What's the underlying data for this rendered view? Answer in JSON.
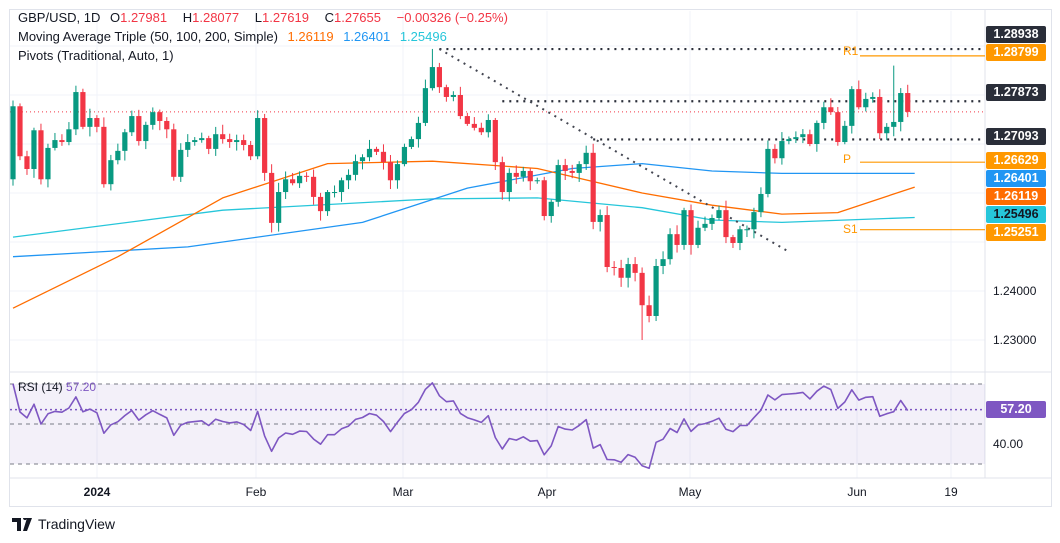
{
  "legend": {
    "symbol": "GBP/USD, 1D",
    "open_label": "O",
    "open": "1.27981",
    "high_label": "H",
    "high": "1.28077",
    "low_label": "L",
    "low": "1.27619",
    "close_label": "C",
    "close": "1.27655",
    "change": "−0.00326 (−0.25%)",
    "ma_title": "Moving Average Triple (50, 100, 200, Simple)",
    "ma50": "1.26119",
    "ma100": "1.26401",
    "ma200": "1.25496",
    "pivots_title": "Pivots (Traditional, Auto, 1)"
  },
  "price_tags": [
    {
      "value": "1.28938",
      "kind": "level"
    },
    {
      "value": "1.28799",
      "kind": "pivot"
    },
    {
      "value": "1.27873",
      "kind": "level"
    },
    {
      "value": "1.27093",
      "kind": "level"
    },
    {
      "value": "1.26629",
      "kind": "pivot"
    },
    {
      "value": "1.26401",
      "kind": "ma100"
    },
    {
      "value": "1.26119",
      "kind": "ma50"
    },
    {
      "value": "1.25496",
      "kind": "ma200"
    },
    {
      "value": "1.25251",
      "kind": "pivot"
    }
  ],
  "pivot_labels": {
    "r1": "R1",
    "p": "P",
    "s1": "S1"
  },
  "rsi": {
    "title": "RSI (14)",
    "value": "57.20",
    "axis_label": "40.00"
  },
  "brand": "TradingView",
  "colors": {
    "up": "#089981",
    "down": "#f23645",
    "ma50": "#ff6d00",
    "ma100": "#2196f3",
    "ma200": "#26c6da",
    "pivot": "#ff9800",
    "level": "#2a2e39",
    "rsi": "#7e57c2"
  },
  "chart_data": {
    "type": "candlestick",
    "title": "GBP/USD, 1D",
    "y_ticks": [
      "1.24000",
      "1.23000"
    ],
    "x_ticks": [
      "2024",
      "Feb",
      "Mar",
      "Apr",
      "May",
      "Jun",
      "19"
    ],
    "ylim": [
      1.2255,
      1.2953
    ],
    "first_open": 1.2628,
    "closes": [
      1.2777,
      1.2675,
      1.2649,
      1.2728,
      1.2628,
      1.2692,
      1.2708,
      1.2704,
      1.273,
      1.2806,
      1.2735,
      1.2753,
      1.2735,
      1.2618,
      1.2667,
      1.2686,
      1.2724,
      1.2757,
      1.2706,
      1.2739,
      1.2765,
      1.2747,
      1.273,
      1.2633,
      1.2688,
      1.2704,
      1.2708,
      1.2712,
      1.269,
      1.272,
      1.271,
      1.2704,
      1.2708,
      1.2698,
      1.2675,
      1.2753,
      1.2641,
      1.2539,
      1.2602,
      1.2628,
      1.262,
      1.2635,
      1.2633,
      1.2592,
      1.2563,
      1.2602,
      1.2602,
      1.2626,
      1.2637,
      1.2665,
      1.2673,
      1.269,
      1.2684,
      1.2663,
      1.2626,
      1.2659,
      1.2694,
      1.271,
      1.2743,
      1.2814,
      1.2857,
      1.2816,
      1.2796,
      1.28,
      1.2757,
      1.2741,
      1.2733,
      1.2724,
      1.2749,
      1.2663,
      1.2602,
      1.2641,
      1.2633,
      1.2645,
      1.2624,
      1.2626,
      1.2553,
      1.2582,
      1.2657,
      1.2645,
      1.2641,
      1.2659,
      1.2682,
      1.2541,
      1.2555,
      1.2449,
      1.2447,
      1.2427,
      1.2455,
      1.2437,
      1.2371,
      1.2349,
      1.2451,
      1.2465,
      1.2516,
      1.2494,
      1.2565,
      1.2494,
      1.2529,
      1.2537,
      1.2549,
      1.2565,
      1.251,
      1.2498,
      1.2526,
      1.2526,
      1.2561,
      1.2598,
      1.269,
      1.2671,
      1.2706,
      1.271,
      1.2714,
      1.272,
      1.27,
      1.2743,
      1.2775,
      1.2765,
      1.2704,
      1.2737,
      1.2812,
      1.2775,
      1.2792,
      1.2796,
      1.2722,
      1.2735,
      1.2745,
      1.2804,
      1.27655
    ],
    "ma50": [
      [
        0,
        1.2365
      ],
      [
        15,
        1.247
      ],
      [
        30,
        1.259
      ],
      [
        45,
        1.266
      ],
      [
        60,
        1.2665
      ],
      [
        75,
        1.265
      ],
      [
        90,
        1.26
      ],
      [
        100,
        1.2575
      ],
      [
        110,
        1.2557
      ],
      [
        118,
        1.256
      ],
      [
        129,
        1.2612
      ]
    ],
    "ma100": [
      [
        0,
        1.247
      ],
      [
        25,
        1.249
      ],
      [
        50,
        1.254
      ],
      [
        65,
        1.261
      ],
      [
        80,
        1.265
      ],
      [
        90,
        1.266
      ],
      [
        100,
        1.2645
      ],
      [
        110,
        1.264
      ],
      [
        129,
        1.264
      ]
    ],
    "ma200": [
      [
        0,
        1.251
      ],
      [
        30,
        1.2565
      ],
      [
        60,
        1.2588
      ],
      [
        75,
        1.259
      ],
      [
        90,
        1.257
      ],
      [
        100,
        1.2545
      ],
      [
        110,
        1.254
      ],
      [
        129,
        1.255
      ]
    ],
    "levels": [
      1.28938,
      1.27873,
      1.27093
    ],
    "pivots": {
      "R1": 1.28799,
      "P": 1.26629,
      "S1": 1.25251
    },
    "trendline": [
      [
        61,
        1.28938
      ],
      [
        111,
        1.248
      ]
    ],
    "rsi_levels": [
      70,
      50,
      30
    ]
  }
}
